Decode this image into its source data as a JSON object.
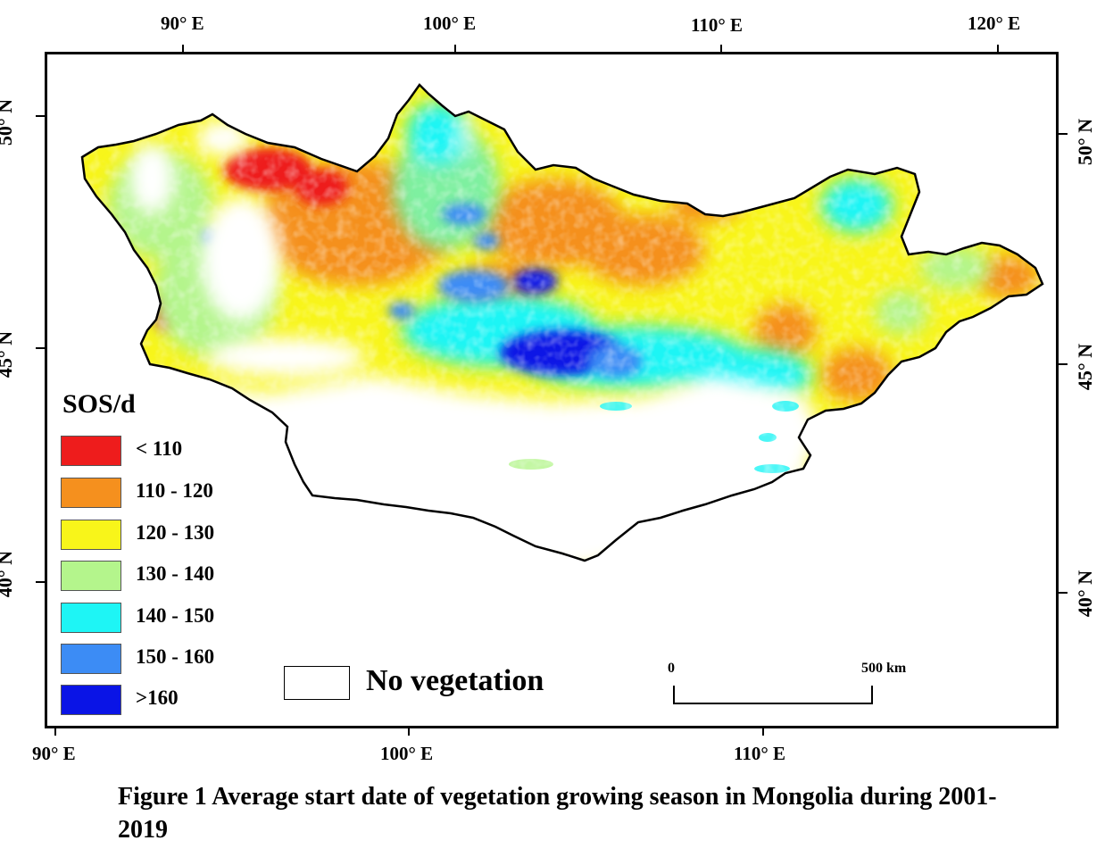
{
  "top_axis": {
    "labels": [
      "90° E",
      "100° E",
      "110° E",
      "120° E"
    ]
  },
  "bottom_axis": {
    "labels": [
      "90° E",
      "100° E",
      "110° E"
    ]
  },
  "left_axis": {
    "labels": [
      "50° N",
      "45° N",
      "40° N"
    ]
  },
  "right_axis": {
    "labels": [
      "50° N",
      "45° N",
      "40° N"
    ]
  },
  "legend": {
    "title": "SOS/d",
    "items": [
      {
        "label": "< 110",
        "color": "#ee1c1c"
      },
      {
        "label": "110 - 120",
        "color": "#f5901e"
      },
      {
        "label": "120 - 130",
        "color": "#f8f51a"
      },
      {
        "label": "130 - 140",
        "color": "#b4f58c"
      },
      {
        "label": "140 - 150",
        "color": "#1ef5f5"
      },
      {
        "label": "150 - 160",
        "color": "#3c8cf5"
      },
      {
        "label": ">160",
        "color": "#0a14e6"
      }
    ],
    "no_vegetation": "No vegetation"
  },
  "scale_bar": {
    "start": "0",
    "end": "500 km"
  },
  "caption": "Figure 1  Average start date of vegetation growing season in Mongolia during 2001-2019"
}
